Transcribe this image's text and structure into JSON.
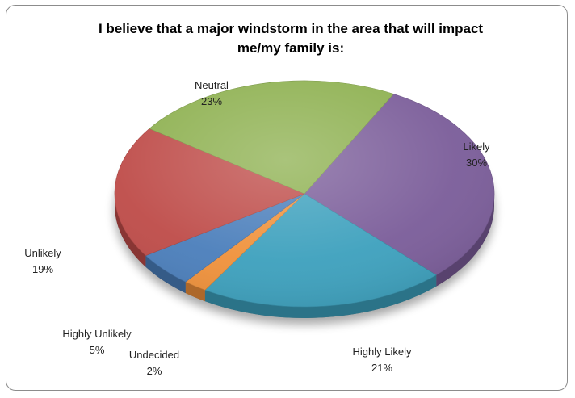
{
  "chart_data": {
    "type": "pie",
    "title": "I believe that a major windstorm in the area that will impact me/my family is:",
    "title_lines": [
      "I believe that a major windstorm in the area that will impact",
      "me/my family is:"
    ],
    "slices": [
      {
        "label": "Likely",
        "value": 30,
        "value_label": "30%",
        "color": "#7a5c99"
      },
      {
        "label": "Highly Likely",
        "value": 21,
        "value_label": "21%",
        "color": "#3ca0bd"
      },
      {
        "label": "Undecided",
        "value": 2,
        "value_label": "2%",
        "color": "#f0913a"
      },
      {
        "label": "Highly Unlikely",
        "value": 5,
        "value_label": "5%",
        "color": "#4a7ebb"
      },
      {
        "label": "Unlikely",
        "value": 19,
        "value_label": "19%",
        "color": "#be4b48"
      },
      {
        "label": "Neutral",
        "value": 23,
        "value_label": "23%",
        "color": "#8db04f"
      }
    ],
    "legend": "none",
    "style": "3d"
  }
}
